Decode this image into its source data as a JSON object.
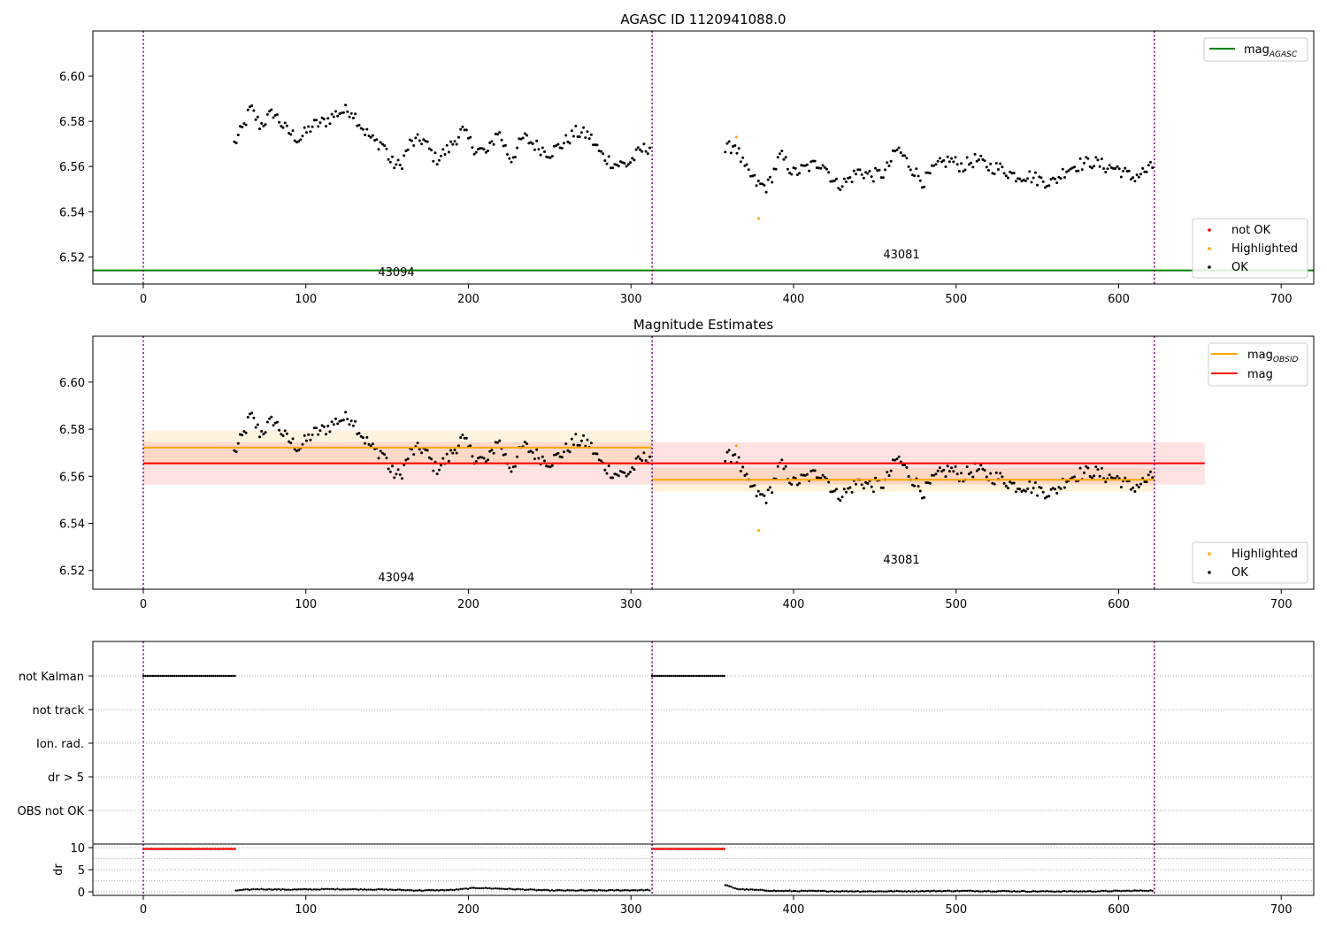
{
  "chart_data": [
    {
      "type": "scatter",
      "title": "AGASC ID 1120941088.0",
      "xlim": [
        -31,
        720
      ],
      "ylim": [
        6.508,
        6.62
      ],
      "xticks": [
        0,
        100,
        200,
        300,
        400,
        500,
        600,
        700
      ],
      "yticks": [
        6.52,
        6.54,
        6.56,
        6.58,
        6.6
      ],
      "ytick_labels": [
        "6.52",
        "6.54",
        "6.56",
        "6.58",
        "6.60"
      ],
      "grid": false,
      "obsid_boundaries": [
        0,
        313,
        622
      ],
      "obsid_labels": [
        {
          "text": "43094",
          "x": 156,
          "y": 6.512
        },
        {
          "text": "43081",
          "x": 467,
          "y": 6.52
        }
      ],
      "hlines": [
        {
          "name": "mag_AGASC",
          "y": 6.514,
          "x_range": [
            -31,
            720
          ],
          "color": "#008000"
        }
      ],
      "series": [
        {
          "name": "OK",
          "color": "#000000",
          "segments": [
            {
              "x_start": 56,
              "x_end": 312,
              "step": 1.2,
              "base": [
                [
                  56,
                  6.57
                ],
                [
                  62,
                  6.578
                ],
                [
                  66,
                  6.586
                ],
                [
                  72,
                  6.578
                ],
                [
                  80,
                  6.584
                ],
                [
                  88,
                  6.576
                ],
                [
                  96,
                  6.572
                ],
                [
                  104,
                  6.578
                ],
                [
                  112,
                  6.58
                ],
                [
                  120,
                  6.584
                ],
                [
                  128,
                  6.585
                ],
                [
                  136,
                  6.576
                ],
                [
                  142,
                  6.571
                ],
                [
                  148,
                  6.57
                ],
                [
                  152,
                  6.562
                ],
                [
                  158,
                  6.56
                ],
                [
                  164,
                  6.57
                ],
                [
                  172,
                  6.572
                ],
                [
                  180,
                  6.563
                ],
                [
                  188,
                  6.568
                ],
                [
                  196,
                  6.576
                ],
                [
                  204,
                  6.568
                ],
                [
                  212,
                  6.566
                ],
                [
                  218,
                  6.576
                ],
                [
                  226,
                  6.563
                ],
                [
                  234,
                  6.573
                ],
                [
                  242,
                  6.569
                ],
                [
                  250,
                  6.566
                ],
                [
                  258,
                  6.57
                ],
                [
                  266,
                  6.575
                ],
                [
                  274,
                  6.574
                ],
                [
                  282,
                  6.565
                ],
                [
                  290,
                  6.561
                ],
                [
                  298,
                  6.561
                ],
                [
                  306,
                  6.567
                ],
                [
                  312,
                  6.569
                ]
              ]
            },
            {
              "x_start": 358,
              "x_end": 622,
              "step": 1.2,
              "base": [
                [
                  358,
                  6.567
                ],
                [
                  364,
                  6.57
                ],
                [
                  370,
                  6.559
                ],
                [
                  378,
                  6.552
                ],
                [
                  384,
                  6.551
                ],
                [
                  392,
                  6.565
                ],
                [
                  400,
                  6.557
                ],
                [
                  410,
                  6.56
                ],
                [
                  418,
                  6.562
                ],
                [
                  426,
                  6.552
                ],
                [
                  432,
                  6.553
                ],
                [
                  440,
                  6.558
                ],
                [
                  448,
                  6.556
                ],
                [
                  456,
                  6.557
                ],
                [
                  464,
                  6.568
                ],
                [
                  472,
                  6.56
                ],
                [
                  480,
                  6.553
                ],
                [
                  488,
                  6.56
                ],
                [
                  496,
                  6.563
                ],
                [
                  504,
                  6.56
                ],
                [
                  512,
                  6.563
                ],
                [
                  520,
                  6.56
                ],
                [
                  528,
                  6.559
                ],
                [
                  536,
                  6.556
                ],
                [
                  544,
                  6.556
                ],
                [
                  552,
                  6.554
                ],
                [
                  560,
                  6.553
                ],
                [
                  568,
                  6.559
                ],
                [
                  576,
                  6.561
                ],
                [
                  584,
                  6.562
                ],
                [
                  592,
                  6.56
                ],
                [
                  600,
                  6.559
                ],
                [
                  608,
                  6.555
                ],
                [
                  614,
                  6.557
                ],
                [
                  622,
                  6.56
                ]
              ]
            }
          ]
        },
        {
          "name": "Highlighted",
          "color": "#ffa500",
          "points": [
            [
              364.8,
              6.573
            ],
            [
              378.5,
              6.537
            ]
          ]
        },
        {
          "name": "not OK",
          "color": "#ff0000",
          "points": []
        }
      ],
      "legends": [
        {
          "placement": "upper right",
          "entries": [
            {
              "label": "mag",
              "subscript": "AGASC",
              "kind": "line",
              "color": "#008000"
            }
          ]
        },
        {
          "placement": "lower right",
          "entries": [
            {
              "label": "not OK",
              "kind": "dot",
              "color": "#ff0000"
            },
            {
              "label": "Highlighted",
              "kind": "dot",
              "color": "#ffa500"
            },
            {
              "label": "OK",
              "kind": "dot",
              "color": "#000000"
            }
          ]
        }
      ]
    },
    {
      "type": "scatter",
      "title": "Magnitude Estimates",
      "xlim": [
        -31,
        720
      ],
      "ylim": [
        6.512,
        6.6195
      ],
      "xticks": [
        0,
        100,
        200,
        300,
        400,
        500,
        600,
        700
      ],
      "yticks": [
        6.52,
        6.54,
        6.56,
        6.58,
        6.6
      ],
      "ytick_labels": [
        "6.52",
        "6.54",
        "6.56",
        "6.58",
        "6.60"
      ],
      "grid": false,
      "obsid_boundaries": [
        0,
        313,
        622
      ],
      "obsid_labels": [
        {
          "text": "43094",
          "x": 156,
          "y": 6.515
        },
        {
          "text": "43081",
          "x": 467,
          "y": 6.523
        }
      ],
      "bands": [
        {
          "x_range": [
            0,
            313
          ],
          "y_range": [
            6.5645,
            6.5795
          ],
          "color": "#ffa500",
          "opacity": 0.12
        },
        {
          "x_range": [
            313,
            622
          ],
          "y_range": [
            6.5535,
            6.5635
          ],
          "color": "#ffa500",
          "opacity": 0.14
        },
        {
          "x_range": [
            0,
            653
          ],
          "y_range": [
            6.5565,
            6.5745
          ],
          "color": "#ff0000",
          "opacity": 0.11
        }
      ],
      "hlines": [
        {
          "name": "mag_OBSID",
          "y": 6.5722,
          "x_range": [
            0,
            313
          ],
          "color": "#ffa500"
        },
        {
          "name": "mag_OBSID",
          "y": 6.5585,
          "x_range": [
            313,
            622
          ],
          "color": "#ffa500"
        },
        {
          "name": "mag",
          "y": 6.5655,
          "x_range": [
            0,
            653
          ],
          "color": "#ff0000"
        }
      ],
      "series_ref": "same measurements as panel 1",
      "legends": [
        {
          "placement": "upper right",
          "entries": [
            {
              "label": "mag",
              "subscript": "OBSID",
              "kind": "line",
              "color": "#ffa500"
            },
            {
              "label": "mag",
              "kind": "line",
              "color": "#ff0000"
            }
          ]
        },
        {
          "placement": "lower right",
          "entries": [
            {
              "label": "Highlighted",
              "kind": "dot",
              "color": "#ffa500"
            },
            {
              "label": "OK",
              "kind": "dot",
              "color": "#000000"
            }
          ]
        }
      ]
    },
    {
      "type": "scatter",
      "xlim": [
        -31,
        720
      ],
      "flag_rows": [
        "not Kalman",
        "not track",
        "Ion. rad.",
        "dr > 5",
        "OBS not OK"
      ],
      "flag_segments": [
        {
          "row": "not Kalman",
          "x_range": [
            0,
            57
          ]
        },
        {
          "row": "not Kalman",
          "x_range": [
            313,
            358
          ]
        }
      ],
      "grid": true
    },
    {
      "type": "scatter",
      "ylabel": "dr",
      "xlim": [
        -31,
        720
      ],
      "ylim": [
        -0.8,
        10.8
      ],
      "yticks": [
        0,
        5,
        10
      ],
      "ytick_labels": [
        "0",
        "5",
        "10"
      ],
      "xticks": [
        0,
        100,
        200,
        300,
        400,
        500,
        600,
        700
      ],
      "grid": true,
      "series": [
        {
          "name": "dr > 5",
          "color": "#ff0000",
          "segments": [
            {
              "x_range": [
                0,
                57
              ],
              "y": 9.7
            },
            {
              "x_range": [
                313,
                358
              ],
              "y": 9.7
            }
          ]
        },
        {
          "name": "dr",
          "color": "#000000",
          "segments": [
            {
              "x_range": [
                57,
                312
              ],
              "base": [
                [
                  57,
                  0.3
                ],
                [
                  70,
                  0.6
                ],
                [
                  90,
                  0.5
                ],
                [
                  120,
                  0.6
                ],
                [
                  150,
                  0.5
                ],
                [
                  170,
                  0.3
                ],
                [
                  190,
                  0.4
                ],
                [
                  205,
                  0.9
                ],
                [
                  220,
                  0.7
                ],
                [
                  250,
                  0.3
                ],
                [
                  280,
                  0.3
                ],
                [
                  312,
                  0.4
                ]
              ]
            },
            {
              "x_range": [
                358,
                622
              ],
              "base": [
                [
                  358,
                  1.5
                ],
                [
                  366,
                  0.6
                ],
                [
                  390,
                  0.2
                ],
                [
                  450,
                  0.1
                ],
                [
                  500,
                  0.2
                ],
                [
                  550,
                  0.1
                ],
                [
                  580,
                  0.1
                ],
                [
                  622,
                  0.3
                ]
              ]
            }
          ]
        }
      ]
    }
  ]
}
